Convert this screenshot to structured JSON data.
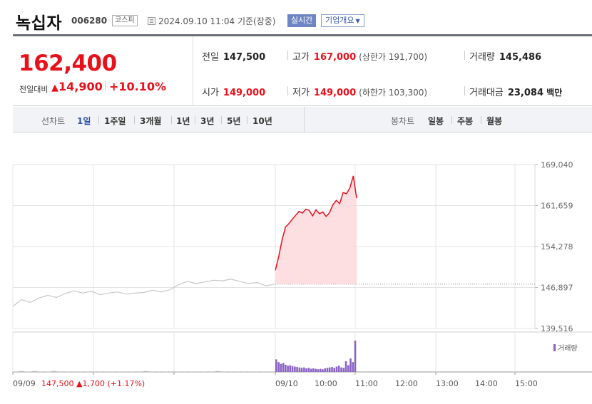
{
  "header": {
    "name": "녹십자",
    "code": "006280",
    "market": "코스피",
    "datetime": "2024.09.10 11:04",
    "basis": "기준(장중)",
    "realtime": "실시간",
    "company_info": "기업개요"
  },
  "price": {
    "current": "162,400",
    "change_label": "전일대비",
    "change_abs": "14,900",
    "change_pct": "+10.10%",
    "prev_close_label": "전일",
    "prev_close": "147,500",
    "high_label": "고가",
    "high": "167,000",
    "upper_limit": "(상한가 191,700)",
    "volume_label": "거래량",
    "volume": "145,486",
    "open_label": "시가",
    "open": "149,000",
    "low_label": "저가",
    "low": "149,000",
    "lower_limit": "(하한가 103,300)",
    "value_label": "거래대금",
    "value": "23,084",
    "value_unit": "백만"
  },
  "tabs": {
    "line_label": "선차트",
    "line_items": [
      "1일",
      "1주일",
      "3개월",
      "1년",
      "3년",
      "5년",
      "10년"
    ],
    "active_line": "1일",
    "candle_label": "봉차트",
    "candle_items": [
      "일봉",
      "주봉",
      "월봉"
    ]
  },
  "chart_data": {
    "type": "line",
    "y_ticks": [
      "169,040",
      "161,659",
      "154,278",
      "146,897",
      "139,516"
    ],
    "y_tick_values": [
      169040,
      161659,
      154278,
      146897,
      139516
    ],
    "ylim": [
      139516,
      169040
    ],
    "x_ticks": [
      "09/10",
      "10:00",
      "11:00",
      "12:00",
      "13:00",
      "14:00",
      "15:00"
    ],
    "prev_close_ref": 147500,
    "prev_day": {
      "label": "09/09",
      "close": "147,500",
      "change": "1,700",
      "change_pct": "(+1.17%)",
      "values": [
        143500,
        144700,
        144200,
        145000,
        145500,
        145100,
        145800,
        146300,
        145900,
        146200,
        145600,
        145900,
        146100,
        145700,
        145900,
        146000,
        146400,
        146100,
        146500,
        147400,
        148000,
        147600,
        147900,
        148200,
        148100,
        148400,
        148000,
        147600,
        147800,
        147200,
        147500
      ]
    },
    "today": {
      "label": "09/10",
      "values": [
        150000,
        152500,
        155500,
        157800,
        158400,
        159200,
        159900,
        160600,
        160300,
        161000,
        160800,
        159800,
        160900,
        160200,
        160500,
        159700,
        160400,
        161800,
        162600,
        162000,
        164000,
        163800,
        164800,
        167000,
        163000
      ]
    },
    "volume": {
      "legend": "거래량",
      "prev_day": [
        1,
        2,
        1,
        2,
        1,
        1,
        2,
        1,
        1,
        1,
        1,
        1,
        1,
        1,
        1,
        1,
        1,
        1,
        1,
        1,
        2,
        1,
        1,
        1,
        1,
        1,
        1,
        1,
        1,
        1,
        1,
        2,
        1,
        1,
        1,
        1,
        1,
        1,
        1,
        1
      ],
      "today": [
        28,
        22,
        18,
        20,
        16,
        14,
        15,
        13,
        12,
        11,
        10,
        9,
        10,
        8,
        9,
        7,
        8,
        7,
        6,
        7,
        6,
        8,
        9,
        10,
        11,
        9,
        12,
        14,
        10,
        9,
        24,
        15,
        30,
        22,
        70
      ]
    }
  },
  "colors": {
    "up": "#e8101a",
    "prev_line": "#c8c8c8",
    "volume": "#8a63c4",
    "fill": "#fdd9dc",
    "grid": "#e4e4e4"
  }
}
